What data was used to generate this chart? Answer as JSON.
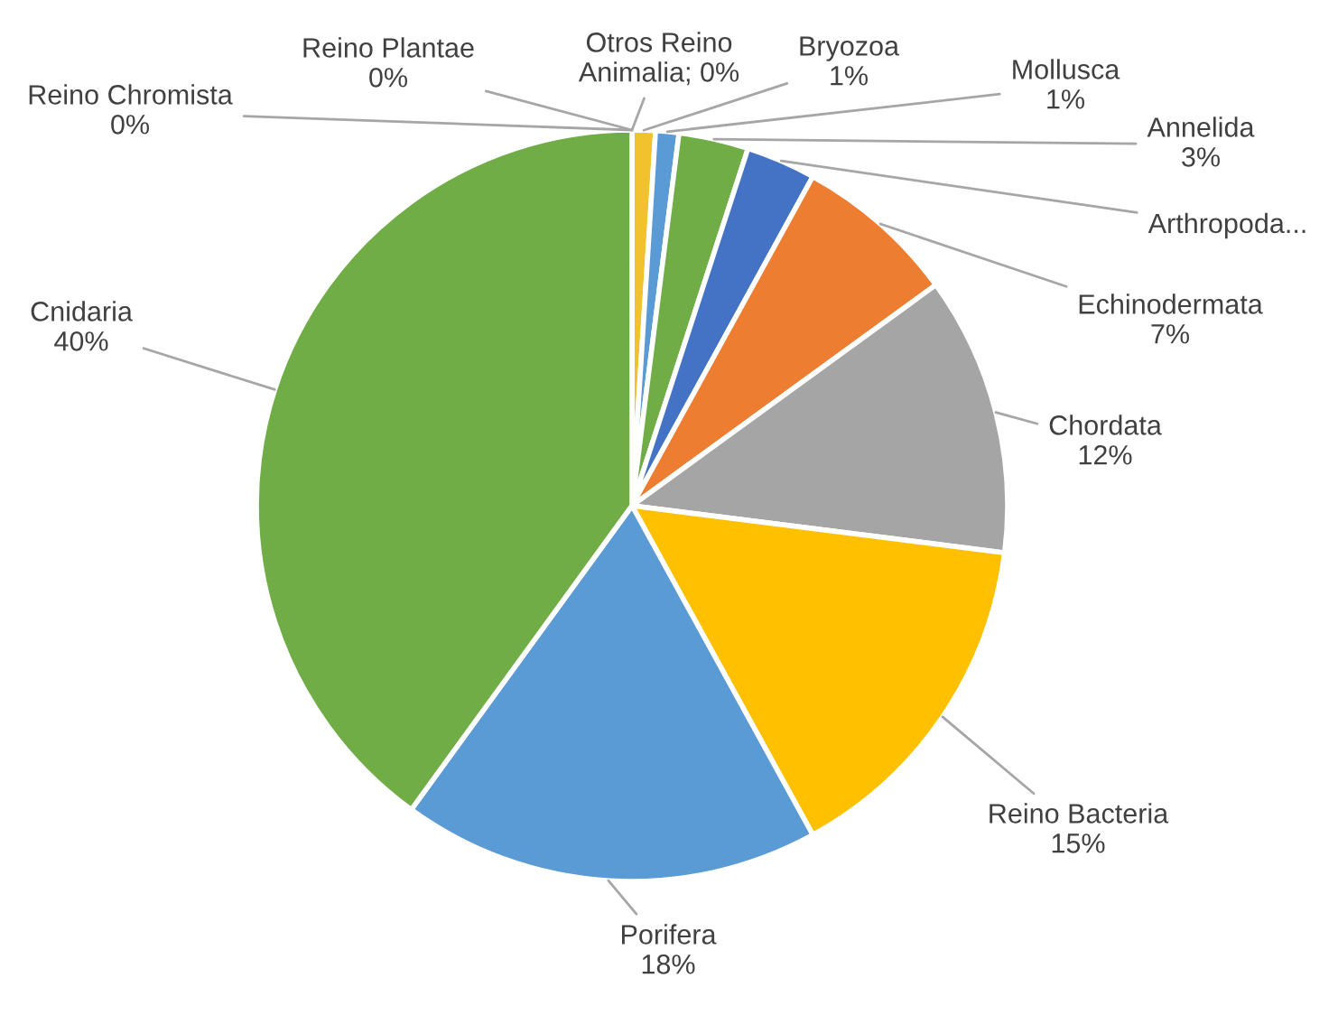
{
  "chart_data": {
    "type": "pie",
    "categories": [
      "Otros Reino Animalia; 0%",
      "Bryozoa",
      "Mollusca",
      "Annelida",
      "Arthropoda...",
      "Echinodermata",
      "Chordata",
      "Reino Bacteria",
      "Porifera",
      "Cnidaria",
      "Reino Chromista",
      "Reino Plantae"
    ],
    "values": [
      0,
      1,
      1,
      3,
      3,
      7,
      12,
      15,
      18,
      40,
      0,
      0
    ],
    "value_labels": [
      null,
      "1%",
      "1%",
      "3%",
      null,
      "7%",
      "12%",
      "15%",
      "18%",
      "40%",
      "0%",
      "0%"
    ],
    "colors": [
      "#264478",
      "#f2c12e",
      "#5b9bd5",
      "#70ad47",
      "#4472c4",
      "#ed7d31",
      "#a5a5a5",
      "#ffc000",
      "#5b9bd5",
      "#70ad47",
      "#9e480e",
      "#636363"
    ]
  }
}
